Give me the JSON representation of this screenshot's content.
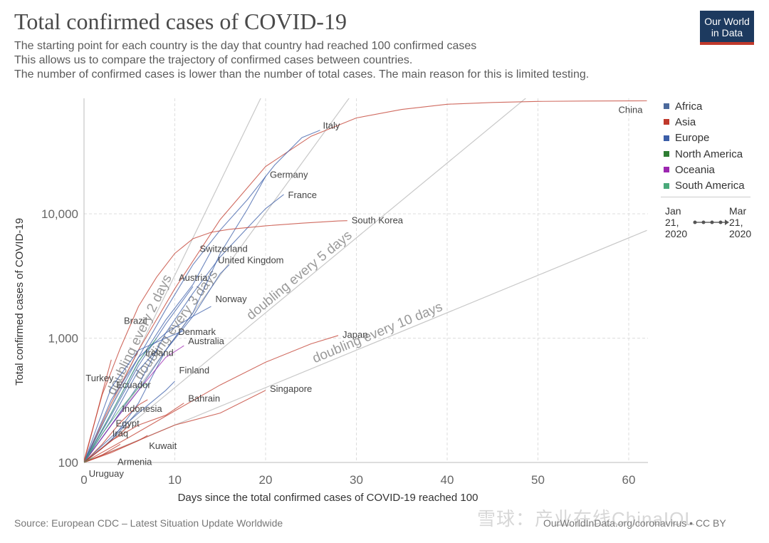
{
  "header": {
    "title": "Total confirmed cases of COVID-19",
    "subtitle_lines": [
      "The starting point for each country is the day that country had reached 100 confirmed cases",
      " This allows us to compare the trajectory of confirmed cases between countries.",
      " The number of confirmed cases is lower than the number of total cases. The main reason for this is limited testing."
    ],
    "logo_line1": "Our World",
    "logo_line2": "in Data"
  },
  "legend": {
    "items": [
      {
        "label": "Africa",
        "color": "#4c6a9c"
      },
      {
        "label": "Asia",
        "color": "#c0392b"
      },
      {
        "label": "Europe",
        "color": "#3b5ea8"
      },
      {
        "label": "North America",
        "color": "#2e7d32"
      },
      {
        "label": "Oceania",
        "color": "#9c27b0"
      },
      {
        "label": "South America",
        "color": "#4aa97a"
      }
    ],
    "time_start": [
      "Jan",
      "21,",
      "2020"
    ],
    "time_end": [
      "Mar",
      "21,",
      "2020"
    ]
  },
  "footer": {
    "source": "Source: European CDC – Latest Situation Update Worldwide",
    "url": "OurWorldInData.org/coronavirus • CC BY",
    "watermark": "雪球：产业在线ChinaIOL"
  },
  "chart_data": {
    "type": "line",
    "title": "Total confirmed cases of COVID-19",
    "xlabel": "Days since the total confirmed cases of COVID-19 reached 100",
    "ylabel": "Total confirmed cases of COVID-19",
    "xlim": [
      0,
      62
    ],
    "ylim": [
      100,
      90000
    ],
    "yscale": "log",
    "x_ticks": [
      0,
      10,
      20,
      30,
      40,
      50,
      60
    ],
    "y_ticks": [
      {
        "value": 100,
        "label": "100"
      },
      {
        "value": 1000,
        "label": "1,000"
      },
      {
        "value": 10000,
        "label": "10,000"
      }
    ],
    "grid": true,
    "reference_lines": [
      {
        "label": "doubling every 2 days",
        "doubling_days": 2,
        "label_at_day": 6.5
      },
      {
        "label": "doubling every 3 days",
        "doubling_days": 3,
        "label_at_day": 10.5
      },
      {
        "label": "doubling every 5 days",
        "doubling_days": 5,
        "label_at_day": 24
      },
      {
        "label": "doubling every 10 days",
        "doubling_days": 10,
        "label_at_day": 32.5
      }
    ],
    "series": [
      {
        "name": "China",
        "region": "Asia",
        "x": [
          0,
          3,
          6,
          10,
          15,
          20,
          25,
          30,
          35,
          40,
          45,
          50,
          55,
          60,
          62
        ],
        "y": [
          100,
          300,
          800,
          2500,
          9000,
          24000,
          42000,
          59000,
          69000,
          76000,
          78500,
          80100,
          80700,
          80900,
          81000
        ]
      },
      {
        "name": "Italy",
        "region": "Europe",
        "x": [
          0,
          3,
          6,
          9,
          12,
          15,
          18,
          21,
          24,
          26
        ],
        "y": [
          100,
          320,
          700,
          1700,
          3900,
          7400,
          13000,
          24700,
          41000,
          47000
        ]
      },
      {
        "name": "Germany",
        "region": "Europe",
        "x": [
          0,
          3,
          6,
          9,
          12,
          15,
          18,
          20
        ],
        "y": [
          100,
          150,
          300,
          800,
          1600,
          4800,
          10900,
          20000
        ]
      },
      {
        "name": "France",
        "region": "Europe",
        "x": [
          0,
          3,
          6,
          9,
          12,
          15,
          18,
          20,
          22
        ],
        "y": [
          100,
          200,
          420,
          1100,
          2300,
          4500,
          7700,
          11000,
          14300
        ]
      },
      {
        "name": "South Korea",
        "region": "Asia",
        "x": [
          0,
          2,
          4,
          6,
          8,
          10,
          12,
          14,
          16,
          20,
          24,
          28,
          29
        ],
        "y": [
          104,
          350,
          830,
          1800,
          3100,
          4800,
          6300,
          7100,
          7500,
          8000,
          8400,
          8750,
          8800
        ]
      },
      {
        "name": "Switzerland",
        "region": "Europe",
        "x": [
          0,
          3,
          6,
          9,
          12,
          14
        ],
        "y": [
          100,
          250,
          640,
          1400,
          2700,
          5000
        ]
      },
      {
        "name": "United Kingdom",
        "region": "Europe",
        "x": [
          0,
          3,
          6,
          9,
          12,
          15,
          16
        ],
        "y": [
          100,
          200,
          380,
          800,
          1500,
          3300,
          3900
        ]
      },
      {
        "name": "Austria",
        "region": "Europe",
        "x": [
          0,
          3,
          6,
          9,
          12
        ],
        "y": [
          100,
          240,
          600,
          1300,
          2600
        ]
      },
      {
        "name": "Norway",
        "region": "Europe",
        "x": [
          0,
          3,
          6,
          9,
          12,
          14
        ],
        "y": [
          100,
          280,
          700,
          1100,
          1500,
          1800
        ]
      },
      {
        "name": "Denmark",
        "region": "Europe",
        "x": [
          0,
          3,
          6,
          9,
          11
        ],
        "y": [
          100,
          400,
          800,
          1000,
          1150
        ]
      },
      {
        "name": "Australia",
        "region": "Oceania",
        "x": [
          0,
          3,
          6,
          9,
          11
        ],
        "y": [
          100,
          200,
          380,
          700,
          870
        ]
      },
      {
        "name": "Brazil",
        "region": "South America",
        "x": [
          0,
          3,
          6,
          8
        ],
        "y": [
          100,
          250,
          650,
          1000
        ]
      },
      {
        "name": "Ireland",
        "region": "Europe",
        "x": [
          0,
          3,
          6,
          8
        ],
        "y": [
          100,
          220,
          550,
          800
        ]
      },
      {
        "name": "Turkey",
        "region": "Asia",
        "x": [
          0,
          1,
          2,
          3
        ],
        "y": [
          100,
          190,
          360,
          670
        ]
      },
      {
        "name": "Japan",
        "region": "Asia",
        "x": [
          0,
          5,
          10,
          15,
          20,
          25,
          28
        ],
        "y": [
          100,
          160,
          260,
          420,
          640,
          900,
          1050
        ]
      },
      {
        "name": "Finland",
        "region": "Europe",
        "x": [
          0,
          3,
          6,
          9,
          10
        ],
        "y": [
          100,
          160,
          250,
          380,
          450
        ]
      },
      {
        "name": "Ecuador",
        "region": "South America",
        "x": [
          0,
          2,
          4,
          6,
          7
        ],
        "y": [
          100,
          170,
          270,
          400,
          430
        ]
      },
      {
        "name": "Singapore",
        "region": "Asia",
        "x": [
          0,
          5,
          10,
          15,
          20
        ],
        "y": [
          100,
          140,
          200,
          250,
          380
        ]
      },
      {
        "name": "Indonesia",
        "region": "Asia",
        "x": [
          0,
          2,
          4,
          6,
          7
        ],
        "y": [
          100,
          140,
          210,
          290,
          320
        ]
      },
      {
        "name": "Egypt",
        "region": "Africa",
        "x": [
          0,
          2,
          4,
          6
        ],
        "y": [
          100,
          130,
          180,
          260
        ]
      },
      {
        "name": "Bahrain",
        "region": "Asia",
        "x": [
          0,
          3,
          6,
          9,
          11
        ],
        "y": [
          100,
          150,
          200,
          240,
          300
        ]
      },
      {
        "name": "Iraq",
        "region": "Asia",
        "x": [
          0,
          2,
          4,
          5
        ],
        "y": [
          100,
          130,
          170,
          200
        ]
      },
      {
        "name": "Kuwait",
        "region": "Asia",
        "x": [
          0,
          3,
          6,
          7
        ],
        "y": [
          100,
          120,
          150,
          165
        ]
      },
      {
        "name": "Armenia",
        "region": "Asia",
        "x": [
          0,
          2,
          4
        ],
        "y": [
          100,
          115,
          140
        ]
      },
      {
        "name": "Uruguay",
        "region": "South America",
        "x": [
          0,
          1
        ],
        "y": [
          100,
          110
        ]
      }
    ]
  }
}
